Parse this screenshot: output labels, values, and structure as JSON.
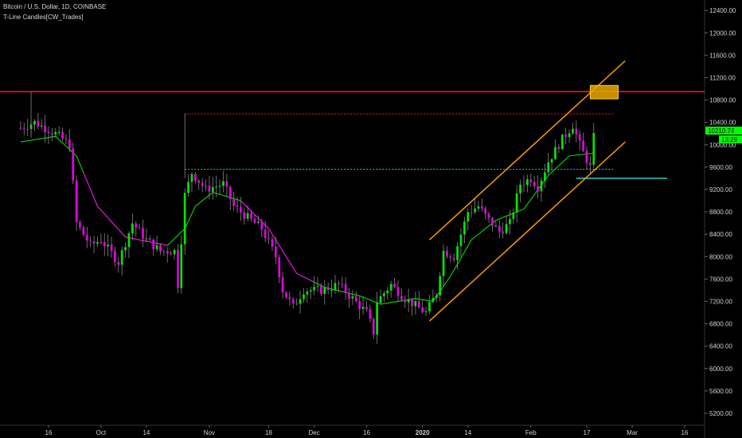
{
  "header": {
    "title": "Bitcoin / U.S. Dollar, 1D, COINBASE",
    "indicator": "T-Line Candles[CW_Trades]"
  },
  "colors": {
    "background": "#000000",
    "bull_candle": "#00e600",
    "bear_candle": "#e600e6",
    "tline": "#00cc00",
    "tline_bear": "#e600e6",
    "resistance": "#ff1a1a",
    "channel": "#ff9900",
    "target_box": "#e6a800",
    "dotted_support": "#33cccc",
    "support_line": "#33cccc",
    "price_tag": "#00ff00",
    "axis_text": "#d0d0d0"
  },
  "price_tags": {
    "current_price": "10210.74",
    "countdown": "13:29"
  },
  "chart_data": {
    "type": "candlestick",
    "title": "Bitcoin / U.S. Dollar, 1D, COINBASE",
    "xlabel": "",
    "ylabel": "",
    "ylim": [
      5000,
      12600
    ],
    "y_ticks": [
      "5200.00",
      "5600.00",
      "6000.00",
      "6400.00",
      "6800.00",
      "7200.00",
      "7600.00",
      "8000.00",
      "8400.00",
      "8800.00",
      "9200.00",
      "9600.00",
      "10000.00",
      "10400.00",
      "10800.00",
      "11200.00",
      "11600.00",
      "12000.00",
      "12400.00"
    ],
    "x_ticks": [
      {
        "label": "16",
        "bold": false
      },
      {
        "label": "Oct",
        "bold": false
      },
      {
        "label": "14",
        "bold": false
      },
      {
        "label": "Nov",
        "bold": false
      },
      {
        "label": "18",
        "bold": false
      },
      {
        "label": "Dec",
        "bold": false
      },
      {
        "label": "16",
        "bold": false
      },
      {
        "label": "2020",
        "bold": true
      },
      {
        "label": "14",
        "bold": false
      },
      {
        "label": "Feb",
        "bold": false
      },
      {
        "label": "17",
        "bold": false
      },
      {
        "label": "Mar",
        "bold": false
      },
      {
        "label": "16",
        "bold": false
      }
    ],
    "x_tick_dates": [
      "2019-09-16",
      "2019-10-01",
      "2019-10-14",
      "2019-11-01",
      "2019-11-18",
      "2019-12-01",
      "2019-12-16",
      "2020-01-01",
      "2020-01-14",
      "2020-02-01",
      "2020-02-17",
      "2020-03-01",
      "2020-03-16"
    ],
    "waypoints": [
      [
        "2019-09-08",
        10300
      ],
      [
        "2019-09-12",
        10400
      ],
      [
        "2019-09-18",
        10200
      ],
      [
        "2019-09-22",
        10000
      ],
      [
        "2019-09-24",
        8600
      ],
      [
        "2019-09-28",
        8200
      ],
      [
        "2019-10-01",
        8300
      ],
      [
        "2019-10-06",
        7900
      ],
      [
        "2019-10-10",
        8600
      ],
      [
        "2019-10-14",
        8300
      ],
      [
        "2019-10-18",
        8100
      ],
      [
        "2019-10-22",
        8100
      ],
      [
        "2019-10-23",
        7500
      ],
      [
        "2019-10-25",
        9100
      ],
      [
        "2019-10-27",
        9500
      ],
      [
        "2019-10-31",
        9200
      ],
      [
        "2019-11-05",
        9300
      ],
      [
        "2019-11-08",
        8900
      ],
      [
        "2019-11-12",
        8700
      ],
      [
        "2019-11-16",
        8500
      ],
      [
        "2019-11-20",
        8000
      ],
      [
        "2019-11-22",
        7400
      ],
      [
        "2019-11-25",
        7100
      ],
      [
        "2019-11-28",
        7400
      ],
      [
        "2019-12-03",
        7400
      ],
      [
        "2019-12-08",
        7500
      ],
      [
        "2019-12-12",
        7250
      ],
      [
        "2019-12-16",
        7000
      ],
      [
        "2019-12-18",
        6650
      ],
      [
        "2019-12-19",
        7200
      ],
      [
        "2019-12-23",
        7500
      ],
      [
        "2019-12-27",
        7250
      ],
      [
        "2020-01-02",
        7000
      ],
      [
        "2020-01-05",
        7350
      ],
      [
        "2020-01-07",
        8100
      ],
      [
        "2020-01-10",
        8000
      ],
      [
        "2020-01-14",
        8800
      ],
      [
        "2020-01-17",
        8900
      ],
      [
        "2020-01-20",
        8650
      ],
      [
        "2020-01-23",
        8450
      ],
      [
        "2020-01-26",
        8600
      ],
      [
        "2020-01-29",
        9300
      ],
      [
        "2020-02-01",
        9400
      ],
      [
        "2020-02-03",
        9250
      ],
      [
        "2020-02-06",
        9700
      ],
      [
        "2020-02-10",
        10100
      ],
      [
        "2020-02-13",
        10350
      ],
      [
        "2020-02-15",
        10000
      ],
      [
        "2020-02-18",
        9600
      ],
      [
        "2020-02-19",
        10210
      ]
    ],
    "tline_waypoints": [
      [
        "2019-09-08",
        10050
      ],
      [
        "2019-09-18",
        10150
      ],
      [
        "2019-09-24",
        9800
      ],
      [
        "2019-09-30",
        8900
      ],
      [
        "2019-10-08",
        8350
      ],
      [
        "2019-10-20",
        8200
      ],
      [
        "2019-10-25",
        8500
      ],
      [
        "2019-10-28",
        8900
      ],
      [
        "2019-11-02",
        9150
      ],
      [
        "2019-11-10",
        9000
      ],
      [
        "2019-11-18",
        8500
      ],
      [
        "2019-11-26",
        7700
      ],
      [
        "2019-12-04",
        7450
      ],
      [
        "2019-12-14",
        7300
      ],
      [
        "2019-12-20",
        7150
      ],
      [
        "2019-12-30",
        7250
      ],
      [
        "2020-01-04",
        7200
      ],
      [
        "2020-01-09",
        7650
      ],
      [
        "2020-01-15",
        8300
      ],
      [
        "2020-01-22",
        8650
      ],
      [
        "2020-01-30",
        8850
      ],
      [
        "2020-02-06",
        9450
      ],
      [
        "2020-02-12",
        9800
      ],
      [
        "2020-02-19",
        9850
      ]
    ],
    "resistance_level": 10950,
    "dotted_resistance": {
      "start": "2019-10-25",
      "level": 10550
    },
    "dotted_support": {
      "start": "2019-10-25",
      "level": 9560
    },
    "support_line": {
      "start": "2020-02-14",
      "end": "2020-03-11",
      "level": 9400
    },
    "channel": {
      "upper": [
        [
          "2020-01-03",
          8300
        ],
        [
          "2020-02-28",
          11500
        ]
      ],
      "lower": [
        [
          "2020-01-03",
          6850
        ],
        [
          "2020-02-28",
          10050
        ]
      ]
    },
    "target_box": {
      "start": "2020-02-18",
      "end": "2020-02-26",
      "low": 10820,
      "high": 11060
    }
  }
}
